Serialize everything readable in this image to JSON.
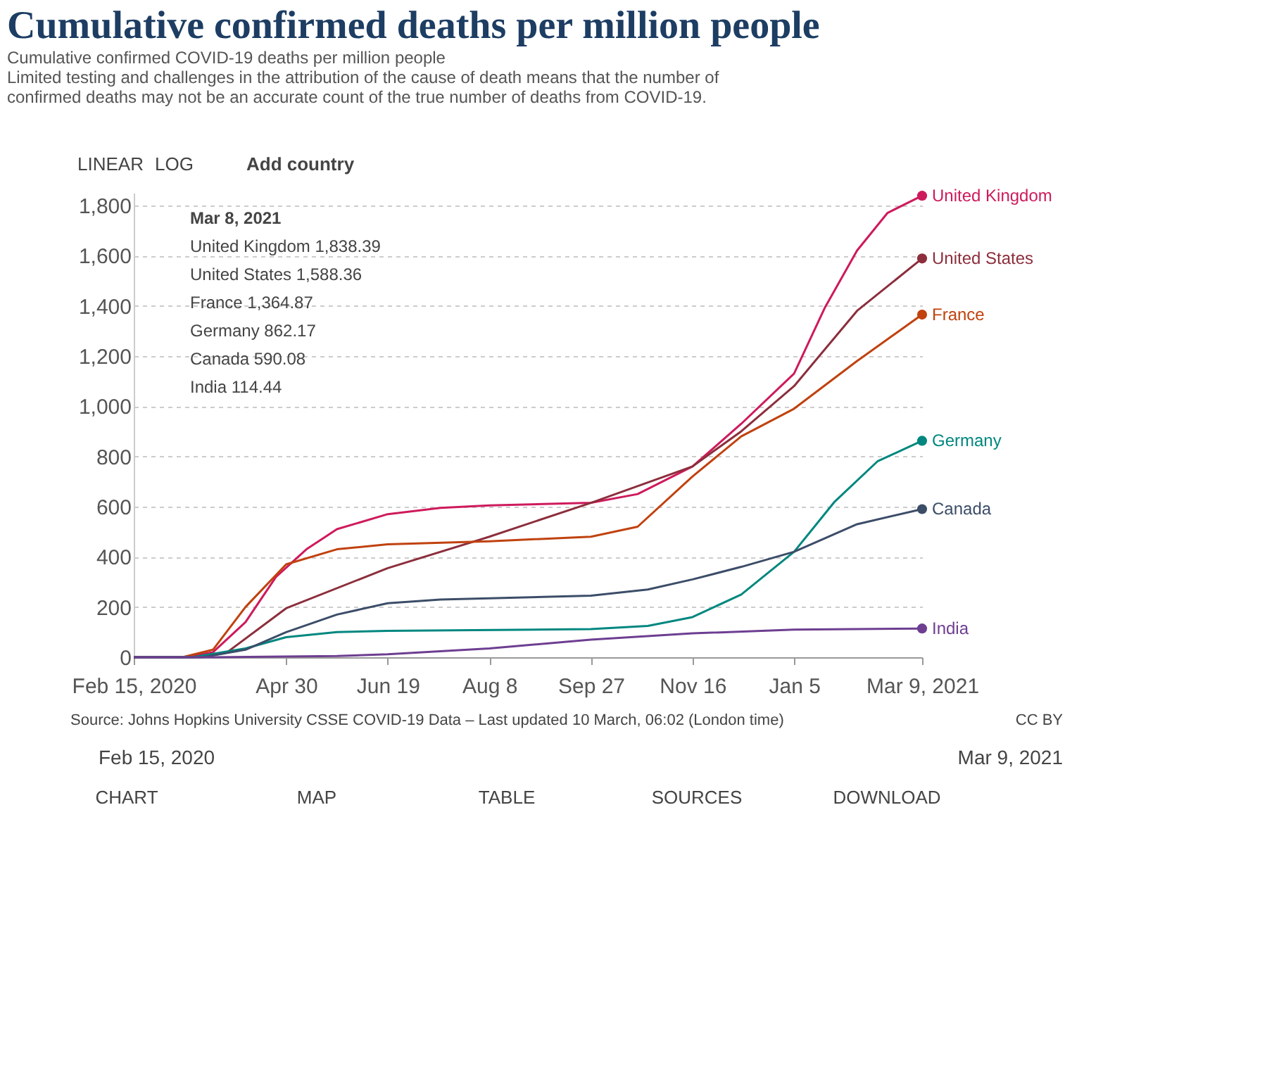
{
  "chart_data": {
    "type": "line",
    "title": "Cumulative confirmed deaths per million people",
    "subtitle": "Cumulative confirmed COVID-19 deaths per million people",
    "xlim": [
      "2020-02-15",
      "2021-03-09"
    ],
    "xticks": [
      {
        "value": "2020-02-15",
        "label": "Feb 15, 2020"
      },
      {
        "value": "2020-04-30",
        "label": "Apr 30"
      },
      {
        "value": "2020-06-19",
        "label": "Jun 19"
      },
      {
        "value": "2020-08-08",
        "label": "Aug 8"
      },
      {
        "value": "2020-09-27",
        "label": "Sep 27"
      },
      {
        "value": "2020-11-16",
        "label": "Nov 16"
      },
      {
        "value": "2021-01-05",
        "label": "Jan 5"
      },
      {
        "value": "2021-03-09",
        "label": "Mar 9, 2021"
      }
    ],
    "ylim": [
      0,
      1850
    ],
    "yticks": [
      0,
      200,
      400,
      600,
      800,
      {
        "value": 1000,
        "label": "1,000"
      },
      {
        "value": 1200,
        "label": "1,200"
      },
      {
        "value": 1400,
        "label": "1,400"
      },
      {
        "value": 1600,
        "label": "1,600"
      },
      {
        "value": 1800,
        "label": "1,800"
      }
    ],
    "grid": "y",
    "line_style": "solid",
    "legend": "right",
    "series": [
      {
        "name": "United Kingdom",
        "color": "#ce1a5c",
        "x": [
          "2020-02-15",
          "2020-03-10",
          "2020-03-25",
          "2020-04-10",
          "2020-04-25",
          "2020-05-10",
          "2020-05-25",
          "2020-06-19",
          "2020-07-15",
          "2020-08-08",
          "2020-09-27",
          "2020-10-20",
          "2020-11-16",
          "2020-12-10",
          "2021-01-05",
          "2021-01-20",
          "2021-02-05",
          "2021-02-20",
          "2021-03-09"
        ],
        "values": [
          0,
          0,
          20,
          140,
          320,
          430,
          510,
          570,
          595,
          605,
          615,
          650,
          760,
          930,
          1130,
          1390,
          1620,
          1770,
          1838.39
        ]
      },
      {
        "name": "United States",
        "color": "#8c2e3c",
        "x": [
          "2020-02-15",
          "2020-03-15",
          "2020-04-01",
          "2020-04-30",
          "2020-06-19",
          "2020-08-08",
          "2020-09-27",
          "2020-11-16",
          "2020-12-10",
          "2021-01-05",
          "2021-02-05",
          "2021-03-09"
        ],
        "values": [
          0,
          0,
          20,
          195,
          355,
          480,
          615,
          760,
          900,
          1080,
          1380,
          1588.36
        ]
      },
      {
        "name": "France",
        "color": "#c0420f",
        "x": [
          "2020-02-15",
          "2020-03-10",
          "2020-03-25",
          "2020-04-10",
          "2020-04-30",
          "2020-05-25",
          "2020-06-19",
          "2020-08-08",
          "2020-09-27",
          "2020-10-20",
          "2020-11-16",
          "2020-12-10",
          "2021-01-05",
          "2021-02-05",
          "2021-03-09"
        ],
        "values": [
          0,
          0,
          30,
          200,
          370,
          430,
          450,
          462,
          480,
          520,
          720,
          880,
          990,
          1180,
          1364.87
        ]
      },
      {
        "name": "Germany",
        "color": "#00877f",
        "x": [
          "2020-02-15",
          "2020-03-15",
          "2020-04-10",
          "2020-04-30",
          "2020-05-25",
          "2020-06-19",
          "2020-09-27",
          "2020-10-25",
          "2020-11-16",
          "2020-12-10",
          "2021-01-05",
          "2021-01-25",
          "2021-02-15",
          "2021-03-09"
        ],
        "values": [
          0,
          0,
          35,
          80,
          100,
          105,
          112,
          125,
          160,
          250,
          420,
          620,
          780,
          862.17
        ]
      },
      {
        "name": "Canada",
        "color": "#3c4d68",
        "x": [
          "2020-02-15",
          "2020-03-20",
          "2020-04-10",
          "2020-04-30",
          "2020-05-25",
          "2020-06-19",
          "2020-07-15",
          "2020-08-08",
          "2020-09-27",
          "2020-10-25",
          "2020-11-16",
          "2020-12-10",
          "2021-01-05",
          "2021-02-05",
          "2021-03-09"
        ],
        "values": [
          0,
          0,
          30,
          100,
          170,
          215,
          230,
          235,
          245,
          270,
          310,
          360,
          420,
          530,
          590.08
        ]
      },
      {
        "name": "India",
        "color": "#6d3e91",
        "x": [
          "2020-02-15",
          "2020-03-25",
          "2020-05-25",
          "2020-06-19",
          "2020-08-08",
          "2020-09-27",
          "2020-11-16",
          "2021-01-05",
          "2021-03-09"
        ],
        "values": [
          0,
          0,
          5,
          12,
          35,
          70,
          95,
          110,
          114.44
        ]
      }
    ],
    "annotations": [
      "Limited testing and challenges in the attribution of the cause of death means that the number of confirmed deaths may not be an accurate count of the true number of deaths from COVID-19.",
      "Source: Johns Hopkins University CSSE COVID-19 Data – Last updated 10 March, 06:02 (London time)",
      "CC BY",
      "LINEAR",
      "LOG",
      "Add country",
      "Mar 8, 2021",
      "United Kingdom   1,838.39",
      "United States   1,588.36",
      "France   1,364.87",
      "Germany   862.17",
      "Canada   590.08",
      "India   114.44",
      "Feb 15, 2020",
      "Mar 9, 2021",
      "CHART",
      "MAP",
      "TABLE",
      "SOURCES",
      "DOWNLOAD"
    ]
  }
}
